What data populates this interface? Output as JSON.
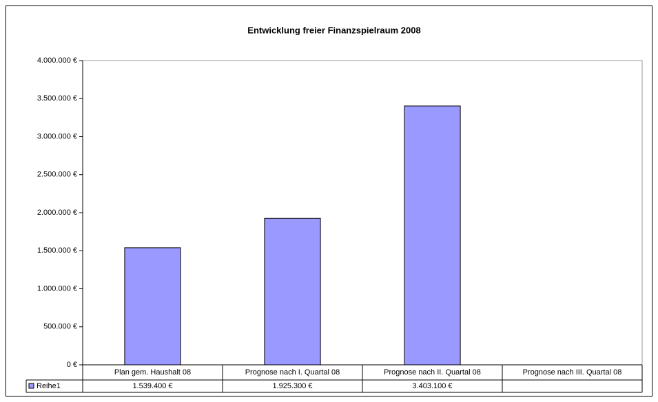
{
  "chart_data": {
    "type": "bar",
    "title": "Entwicklung freier Finanzspielraum 2008",
    "categories": [
      "Plan gem. Haushalt 08",
      "Prognose nach I. Quartal 08",
      "Prognose nach II. Quartal 08",
      "Prognose nach III. Quartal 08"
    ],
    "series": [
      {
        "name": "Reihe1",
        "color": "#9999ff",
        "values": [
          1539400,
          1925300,
          3403100,
          null
        ],
        "value_labels": [
          "1.539.400 €",
          "1.925.300 €",
          "3.403.100 €",
          null
        ]
      }
    ],
    "ylim": [
      0,
      4000000
    ],
    "yticks": [
      {
        "value": 0,
        "label": "0 €"
      },
      {
        "value": 500000,
        "label": "500.000 €"
      },
      {
        "value": 1000000,
        "label": "1.000.000 €"
      },
      {
        "value": 1500000,
        "label": "1.500.000 €"
      },
      {
        "value": 2000000,
        "label": "2.000.000 €"
      },
      {
        "value": 2500000,
        "label": "2.500.000 €"
      },
      {
        "value": 3000000,
        "label": "3.000.000 €"
      },
      {
        "value": 3500000,
        "label": "3.500.000 €"
      },
      {
        "value": 4000000,
        "label": "4.000.000 €"
      }
    ],
    "grid": false
  }
}
